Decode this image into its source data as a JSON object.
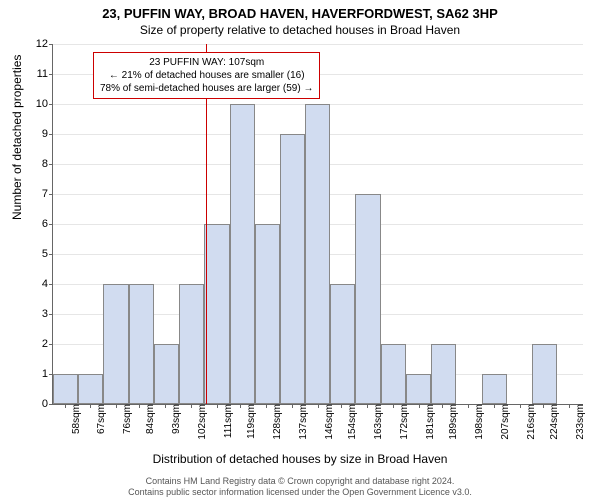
{
  "title": "23, PUFFIN WAY, BROAD HAVEN, HAVERFORDWEST, SA62 3HP",
  "subtitle": "Size of property relative to detached houses in Broad Haven",
  "ylabel": "Number of detached properties",
  "xlabel": "Distribution of detached houses by size in Broad Haven",
  "footer_line1": "Contains HM Land Registry data © Crown copyright and database right 2024.",
  "footer_line2": "Contains public sector information licensed under the Open Government Licence v3.0.",
  "annotation": {
    "line1": "23 PUFFIN WAY: 107sqm",
    "line2": "← 21% of detached houses are smaller (16)",
    "line3": "78% of semi-detached houses are larger (59) →"
  },
  "chart": {
    "type": "histogram",
    "ylim": [
      0,
      12
    ],
    "ytick_step": 1,
    "xlim": [
      54,
      238
    ],
    "xticks": [
      58,
      67,
      76,
      84,
      93,
      102,
      111,
      119,
      128,
      137,
      146,
      154,
      163,
      172,
      181,
      189,
      198,
      207,
      216,
      224,
      233
    ],
    "xtick_suffix": "sqm",
    "bar_color": "#d1dcf0",
    "bar_border": "#888888",
    "grid_color": "#e6e6e6",
    "background_color": "#ffffff",
    "ref_line_x": 107,
    "ref_line_color": "#cc0000",
    "annotation_border": "#cc0000",
    "bars": [
      {
        "x0": 54,
        "x1": 62.8,
        "y": 1
      },
      {
        "x0": 62.8,
        "x1": 71.5,
        "y": 1
      },
      {
        "x0": 71.5,
        "x1": 80.3,
        "y": 4
      },
      {
        "x0": 80.3,
        "x1": 89.0,
        "y": 4
      },
      {
        "x0": 89.0,
        "x1": 97.8,
        "y": 2
      },
      {
        "x0": 97.8,
        "x1": 106.5,
        "y": 4
      },
      {
        "x0": 106.5,
        "x1": 115.3,
        "y": 6
      },
      {
        "x0": 115.3,
        "x1": 124.0,
        "y": 10
      },
      {
        "x0": 124.0,
        "x1": 132.8,
        "y": 6
      },
      {
        "x0": 132.8,
        "x1": 141.5,
        "y": 9
      },
      {
        "x0": 141.5,
        "x1": 150.3,
        "y": 10
      },
      {
        "x0": 150.3,
        "x1": 159.0,
        "y": 4
      },
      {
        "x0": 159.0,
        "x1": 167.8,
        "y": 7
      },
      {
        "x0": 167.8,
        "x1": 176.5,
        "y": 2
      },
      {
        "x0": 176.5,
        "x1": 185.3,
        "y": 1
      },
      {
        "x0": 185.3,
        "x1": 194.0,
        "y": 2
      },
      {
        "x0": 194.0,
        "x1": 202.8,
        "y": 0
      },
      {
        "x0": 202.8,
        "x1": 211.5,
        "y": 1
      },
      {
        "x0": 211.5,
        "x1": 220.3,
        "y": 0
      },
      {
        "x0": 220.3,
        "x1": 229.0,
        "y": 2
      },
      {
        "x0": 229.0,
        "x1": 237.8,
        "y": 0
      }
    ]
  }
}
